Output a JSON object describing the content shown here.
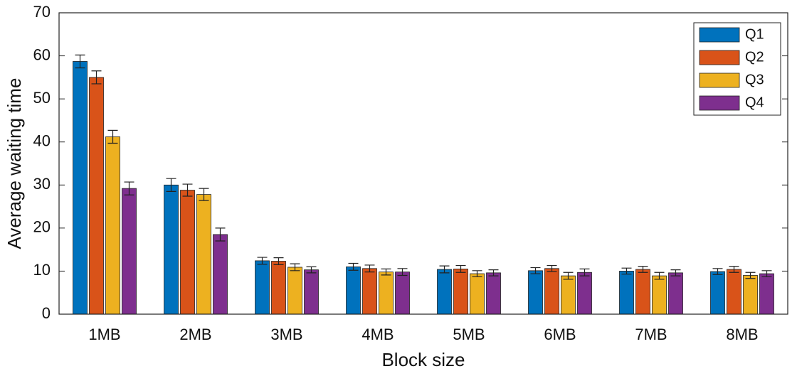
{
  "chart_data": {
    "type": "bar",
    "x_label": "Block size",
    "y_label": "Average waiting time",
    "categories": [
      "1MB",
      "2MB",
      "3MB",
      "4MB",
      "5MB",
      "6MB",
      "7MB",
      "8MB"
    ],
    "series": [
      {
        "name": "Q1",
        "color": "#0072BD",
        "values": [
          58.7,
          30.0,
          12.4,
          11.0,
          10.4,
          10.1,
          10.0,
          9.9
        ],
        "errors": [
          1.5,
          1.5,
          0.8,
          0.8,
          0.8,
          0.7,
          0.7,
          0.7
        ]
      },
      {
        "name": "Q2",
        "color": "#D95319",
        "values": [
          55.0,
          28.8,
          12.3,
          10.6,
          10.5,
          10.6,
          10.4,
          10.4
        ],
        "errors": [
          1.5,
          1.4,
          0.8,
          0.8,
          0.8,
          0.7,
          0.7,
          0.7
        ]
      },
      {
        "name": "Q3",
        "color": "#EDB120",
        "values": [
          41.2,
          27.8,
          10.9,
          9.8,
          9.4,
          8.9,
          8.9,
          9.0
        ],
        "errors": [
          1.5,
          1.4,
          0.8,
          0.7,
          0.7,
          0.8,
          0.8,
          0.7
        ]
      },
      {
        "name": "Q4",
        "color": "#7E2F8E",
        "values": [
          29.2,
          18.5,
          10.3,
          9.8,
          9.6,
          9.7,
          9.6,
          9.4
        ],
        "errors": [
          1.5,
          1.5,
          0.7,
          0.8,
          0.7,
          0.8,
          0.7,
          0.7
        ]
      }
    ],
    "ylim": [
      0,
      70
    ],
    "yticks": [
      0,
      10,
      20,
      30,
      40,
      50,
      60,
      70
    ],
    "legend": "northeast"
  }
}
